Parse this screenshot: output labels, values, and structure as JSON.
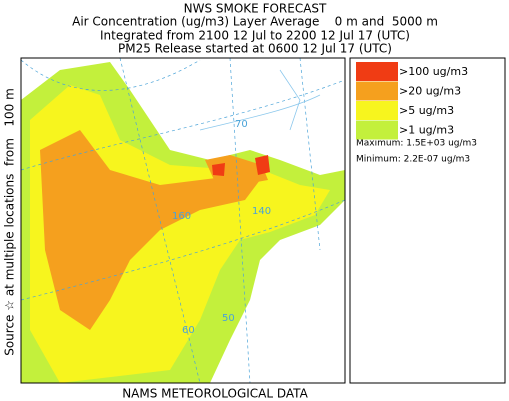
{
  "header": {
    "lines": [
      "NWS SMOKE FORECAST",
      "Air Concentration (ug/m3) Layer Average    0 m and  5000 m",
      "Integrated from 2100 12 Jul to 2200 12 Jul 17 (UTC)",
      "PM25 Release started at 0600 12 Jul 17 (UTC)"
    ]
  },
  "side_label": "Source ☆ at multiple locations  from   100 m",
  "legend": {
    "items": [
      {
        "label": ">100 ug/m3",
        "color": "#f03c14"
      },
      {
        "label": ">20 ug/m3",
        "color": "#f5a01e"
      },
      {
        "label": ">5 ug/m3",
        "color": "#f7f51e"
      },
      {
        "label": ">1 ug/m3",
        "color": "#c3f03c"
      }
    ],
    "maximum": "Maximum: 1.5E+03 ug/m3",
    "minimum": "Minimum: 2.2E-07 ug/m3"
  },
  "map": {
    "labels": [
      "70",
      "160",
      "140",
      "60",
      "50"
    ]
  },
  "footer": "NAMS METEOROLOGICAL DATA"
}
